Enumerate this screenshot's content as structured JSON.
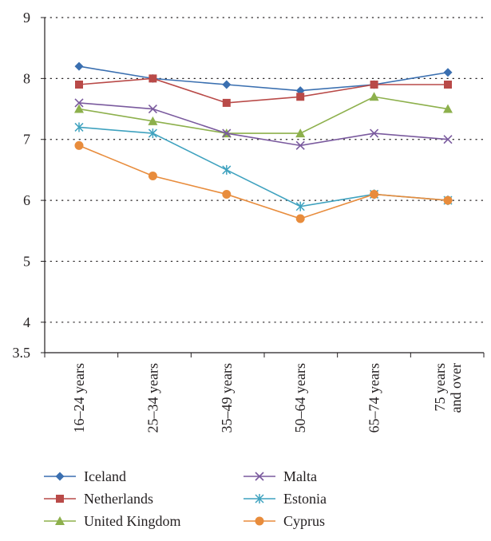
{
  "chart_data": {
    "type": "line",
    "title": "",
    "xlabel": "",
    "ylabel": "",
    "ylim": [
      3.5,
      9
    ],
    "yticks": [
      {
        "value": 9,
        "label": "9"
      },
      {
        "value": 8,
        "label": "8"
      },
      {
        "value": 7,
        "label": "7"
      },
      {
        "value": 6,
        "label": "6"
      },
      {
        "value": 5,
        "label": "5"
      },
      {
        "value": 4,
        "label": "4"
      },
      {
        "value": 3.5,
        "label": "3.5"
      }
    ],
    "grid": "horizontal-dotted",
    "legend_position": "bottom",
    "categories": [
      [
        "16–24 years"
      ],
      [
        "25–34 years"
      ],
      [
        "35–49 years"
      ],
      [
        "50–64 years"
      ],
      [
        "65–74 years"
      ],
      [
        "75 years",
        "and over"
      ]
    ],
    "series": [
      {
        "name": "Iceland",
        "color": "#3a6fb0",
        "marker": "diamond",
        "values": [
          8.2,
          8.0,
          7.9,
          7.8,
          7.9,
          8.1
        ]
      },
      {
        "name": "Netherlands",
        "color": "#b94a48",
        "marker": "square",
        "values": [
          7.9,
          8.0,
          7.6,
          7.7,
          7.9,
          7.9
        ]
      },
      {
        "name": "United Kingdom",
        "color": "#8db04c",
        "marker": "triangle",
        "values": [
          7.5,
          7.3,
          7.1,
          7.1,
          7.7,
          7.5
        ]
      },
      {
        "name": "Malta",
        "color": "#7a5a9e",
        "marker": "x",
        "values": [
          7.6,
          7.5,
          7.1,
          6.9,
          7.1,
          7.0
        ]
      },
      {
        "name": "Estonia",
        "color": "#3fa2bf",
        "marker": "star",
        "values": [
          7.2,
          7.1,
          6.5,
          5.9,
          6.1,
          6.0
        ]
      },
      {
        "name": "Cyprus",
        "color": "#e88c3c",
        "marker": "circle",
        "values": [
          6.9,
          6.4,
          6.1,
          5.7,
          6.1,
          6.0
        ]
      }
    ]
  }
}
